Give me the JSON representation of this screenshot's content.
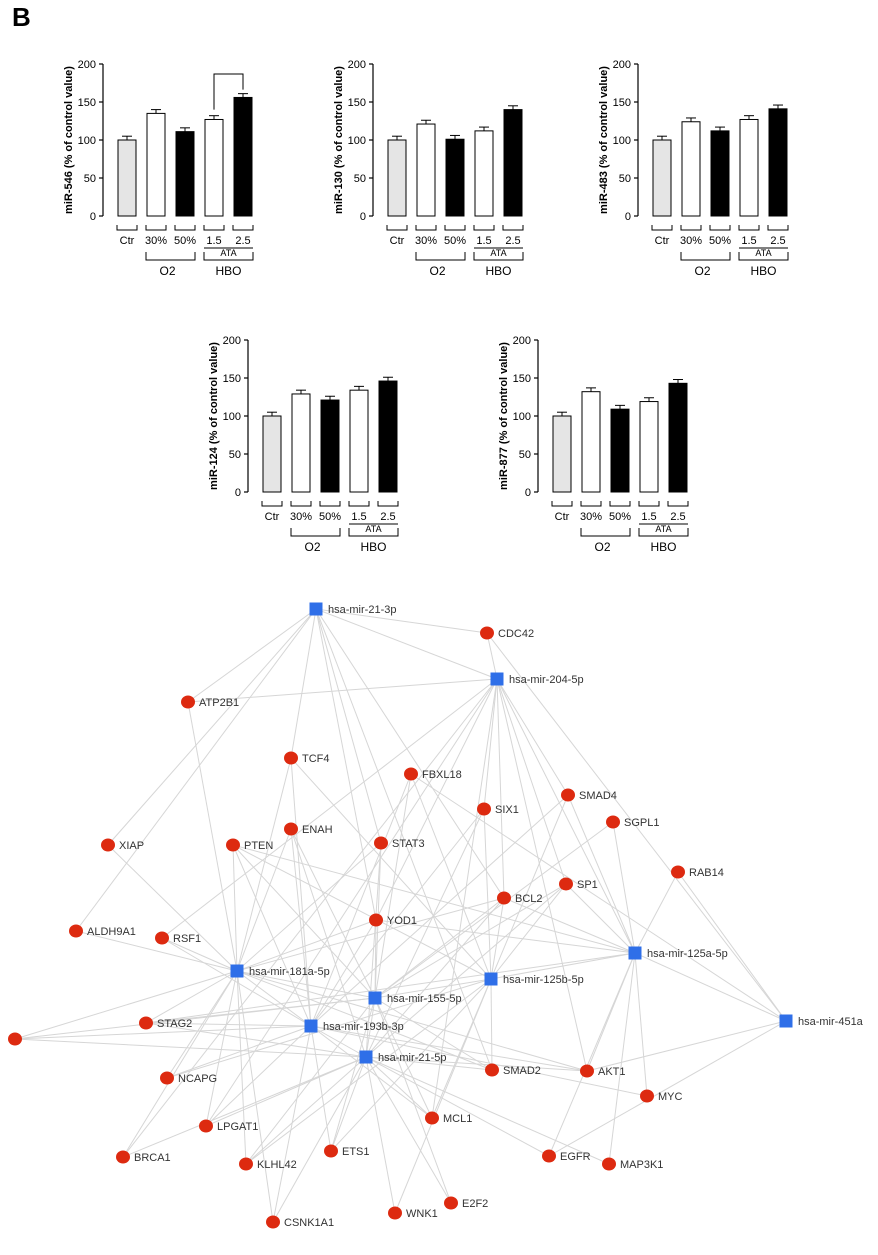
{
  "panel_label": "B",
  "chart_data": [
    {
      "type": "bar",
      "ylabel": "miR-546 (% of control value)",
      "categories": [
        "Ctr",
        "30%",
        "50%",
        "1.5",
        "2.5"
      ],
      "values": [
        100,
        135,
        111,
        127,
        156
      ],
      "errors": [
        5,
        5,
        5,
        5,
        5
      ],
      "ylim": [
        0,
        200
      ],
      "yticks": [
        0,
        50,
        100,
        150,
        200
      ],
      "group_labels": {
        "o2": "O2",
        "o2_sub": "2",
        "hbo": "HBO",
        "ata": "ATA"
      },
      "significance": {
        "from": 3,
        "to": 4
      }
    },
    {
      "type": "bar",
      "ylabel": "miR-130 (% of control value)",
      "categories": [
        "Ctr",
        "30%",
        "50%",
        "1.5",
        "2.5"
      ],
      "values": [
        100,
        121,
        101,
        112,
        140
      ],
      "errors": [
        5,
        5,
        5,
        5,
        5
      ],
      "ylim": [
        0,
        200
      ],
      "yticks": [
        0,
        50,
        100,
        150,
        200
      ],
      "group_labels": {
        "o2": "O2",
        "o2_sub": "2",
        "hbo": "HBO",
        "ata": "ATA"
      }
    },
    {
      "type": "bar",
      "ylabel": "miR-483 (% of control value)",
      "categories": [
        "Ctr",
        "30%",
        "50%",
        "1.5",
        "2.5"
      ],
      "values": [
        100,
        124,
        112,
        127,
        141
      ],
      "errors": [
        5,
        5,
        5,
        5,
        5
      ],
      "ylim": [
        0,
        200
      ],
      "yticks": [
        0,
        50,
        100,
        150,
        200
      ],
      "group_labels": {
        "o2": "O2",
        "o2_sub": "2",
        "hbo": "HBO",
        "ata": "ATA"
      }
    },
    {
      "type": "bar",
      "ylabel": "miR-124 (% of control value)",
      "categories": [
        "Ctr",
        "30%",
        "50%",
        "1.5",
        "2.5"
      ],
      "values": [
        100,
        129,
        121,
        134,
        146
      ],
      "errors": [
        5,
        5,
        5,
        5,
        5
      ],
      "ylim": [
        0,
        200
      ],
      "yticks": [
        0,
        50,
        100,
        150,
        200
      ],
      "group_labels": {
        "o2": "O2",
        "o2_sub": "2",
        "hbo": "HBO",
        "ata": "ATA"
      }
    },
    {
      "type": "bar",
      "ylabel": "miR-877 (% of control value)",
      "categories": [
        "Ctr",
        "30%",
        "50%",
        "1.5",
        "2.5"
      ],
      "values": [
        100,
        132,
        109,
        119,
        143
      ],
      "errors": [
        5,
        5,
        5,
        5,
        5
      ],
      "ylim": [
        0,
        200
      ],
      "yticks": [
        0,
        50,
        100,
        150,
        200
      ],
      "group_labels": {
        "o2": "O2",
        "o2_sub": "2",
        "hbo": "HBO",
        "ata": "ATA"
      }
    }
  ],
  "bar_colors": {
    "ctr": "#e5e5e5",
    "hollow": "#ffffff",
    "solid": "#000000"
  },
  "network": {
    "colors": {
      "mirna": "#2f6fe8",
      "gene": "#dd2a10",
      "edge": "#d6d6d6",
      "label": "#333333"
    },
    "mirnas": [
      "hsa-mir-21-3p",
      "hsa-mir-204-5p",
      "hsa-mir-181a-5p",
      "hsa-mir-155-5p",
      "hsa-mir-125b-5p",
      "hsa-mir-125a-5p",
      "hsa-mir-193b-3p",
      "hsa-mir-21-5p",
      "hsa-mir-451a"
    ],
    "genes": [
      "CDC42",
      "ATP2B1",
      "TCF4",
      "FBXL18",
      "SMAD4",
      "SIX1",
      "SGPL1",
      "XIAP",
      "PTEN",
      "ENAH",
      "STAT3",
      "RAB14",
      "SP1",
      "BCL2",
      "YOD1",
      "ALDH9A1",
      "RSF1",
      "STAG2",
      "",
      "NCAPG",
      "SMAD2",
      "AKT1",
      "MYC",
      "MCL1",
      "LPGAT1",
      "BRCA1",
      "KLHL42",
      "ETS1",
      "EGFR",
      "MAP3K1",
      "E2F2",
      "WNK1",
      "CSNK1A1"
    ]
  }
}
